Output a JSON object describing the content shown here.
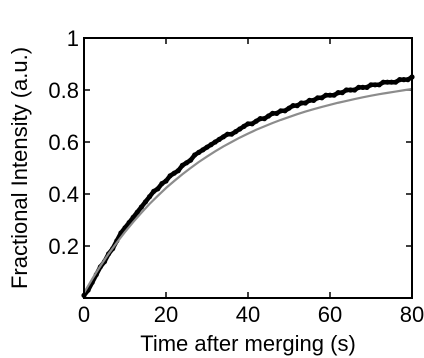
{
  "chart_data": {
    "type": "line",
    "title": "",
    "xlabel": "Time after merging (s)",
    "ylabel": "Fractional Intensity (a.u.)",
    "xlim": [
      0,
      80
    ],
    "ylim": [
      0,
      1
    ],
    "xticks": [
      0,
      20,
      40,
      60,
      80
    ],
    "yticks": [
      0.2,
      0.4,
      0.6,
      0.8,
      1
    ],
    "ytick_labels": [
      "0.2",
      "0.4",
      "0.6",
      "0.8",
      "1"
    ],
    "grid": false,
    "series": [
      {
        "kind": "data-markers",
        "color": "#000000",
        "x": [
          0,
          1,
          2,
          3,
          4,
          5,
          6,
          7,
          8,
          9,
          10,
          11,
          12,
          13,
          14,
          15,
          16,
          17,
          18,
          19,
          20,
          21,
          22,
          23,
          24,
          25,
          26,
          27,
          28,
          29,
          30,
          31,
          32,
          33,
          34,
          35,
          36,
          37,
          38,
          39,
          40,
          41,
          42,
          43,
          44,
          45,
          46,
          47,
          48,
          49,
          50,
          51,
          52,
          53,
          54,
          55,
          56,
          57,
          58,
          59,
          60,
          61,
          62,
          63,
          64,
          65,
          66,
          67,
          68,
          69,
          70,
          71,
          72,
          73,
          74,
          75,
          76,
          77,
          78,
          79,
          80
        ],
        "y": [
          0.01,
          0.03,
          0.06,
          0.09,
          0.12,
          0.14,
          0.17,
          0.19,
          0.22,
          0.25,
          0.27,
          0.29,
          0.31,
          0.33,
          0.35,
          0.37,
          0.39,
          0.41,
          0.42,
          0.44,
          0.45,
          0.47,
          0.48,
          0.49,
          0.51,
          0.52,
          0.53,
          0.55,
          0.56,
          0.57,
          0.58,
          0.59,
          0.6,
          0.61,
          0.62,
          0.63,
          0.63,
          0.64,
          0.65,
          0.66,
          0.67,
          0.67,
          0.68,
          0.69,
          0.69,
          0.7,
          0.71,
          0.71,
          0.72,
          0.72,
          0.73,
          0.74,
          0.74,
          0.75,
          0.75,
          0.76,
          0.76,
          0.77,
          0.77,
          0.78,
          0.78,
          0.78,
          0.79,
          0.79,
          0.8,
          0.8,
          0.8,
          0.81,
          0.81,
          0.81,
          0.82,
          0.82,
          0.82,
          0.83,
          0.83,
          0.83,
          0.83,
          0.84,
          0.84,
          0.84,
          0.85
        ]
      },
      {
        "kind": "fit",
        "color": "#8c8c8c",
        "x": [
          0,
          2,
          4,
          6,
          8,
          10,
          12,
          14,
          16,
          18,
          20,
          22,
          24,
          26,
          28,
          30,
          32,
          34,
          36,
          38,
          40,
          42,
          44,
          46,
          48,
          50,
          52,
          54,
          56,
          58,
          60,
          62,
          64,
          66,
          68,
          70,
          72,
          74,
          76,
          78,
          80
        ],
        "y": [
          0.02,
          0.073,
          0.123,
          0.17,
          0.213,
          0.254,
          0.292,
          0.328,
          0.362,
          0.393,
          0.423,
          0.45,
          0.476,
          0.5,
          0.523,
          0.544,
          0.564,
          0.583,
          0.6,
          0.617,
          0.632,
          0.647,
          0.66,
          0.673,
          0.685,
          0.696,
          0.707,
          0.717,
          0.726,
          0.735,
          0.743,
          0.751,
          0.758,
          0.765,
          0.772,
          0.778,
          0.784,
          0.789,
          0.794,
          0.799,
          0.804
        ]
      }
    ]
  }
}
